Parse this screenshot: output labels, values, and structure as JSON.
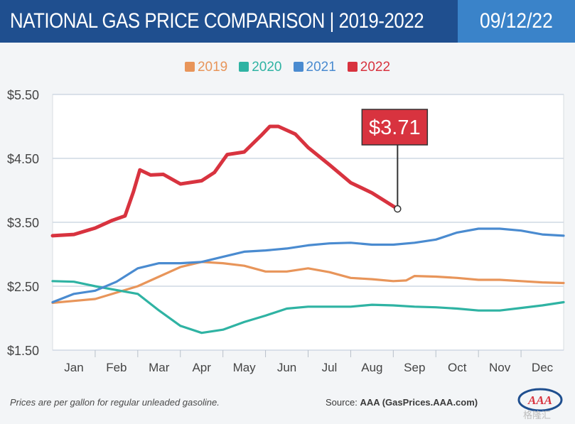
{
  "header": {
    "title": "NATIONAL GAS PRICE COMPARISON | 2019-2022",
    "date": "09/12/22"
  },
  "footer": {
    "note": "Prices are per gallon for regular unleaded gasoline.",
    "source_label": "Source:",
    "source_value": "AAA (GasPrices.AAA.com)",
    "logo_text": "AAA",
    "watermark": "格隆汇"
  },
  "chart_data": {
    "type": "line",
    "title": "",
    "xlabel": "",
    "ylabel": "",
    "months": [
      "Jan",
      "Feb",
      "Mar",
      "Apr",
      "May",
      "Jun",
      "Jul",
      "Aug",
      "Sep",
      "Oct",
      "Nov",
      "Dec"
    ],
    "yticks": [
      "$5.50",
      "$4.50",
      "$3.50",
      "$2.50",
      "$1.50"
    ],
    "ylim": [
      1.5,
      5.5
    ],
    "xlim": [
      0,
      12
    ],
    "grid": "horizontal",
    "legend_position": "top-center",
    "callout": {
      "label": "$3.71",
      "series": "2022",
      "x": 8.1,
      "y": 3.71
    },
    "series": [
      {
        "name": "2019",
        "color": "#e8955a",
        "points": [
          [
            0,
            2.24
          ],
          [
            0.5,
            2.27
          ],
          [
            1,
            2.3
          ],
          [
            1.5,
            2.4
          ],
          [
            2,
            2.5
          ],
          [
            2.5,
            2.65
          ],
          [
            3,
            2.8
          ],
          [
            3.5,
            2.88
          ],
          [
            4,
            2.86
          ],
          [
            4.5,
            2.82
          ],
          [
            5,
            2.73
          ],
          [
            5.5,
            2.73
          ],
          [
            6,
            2.78
          ],
          [
            6.5,
            2.72
          ],
          [
            7,
            2.63
          ],
          [
            7.5,
            2.61
          ],
          [
            8,
            2.58
          ],
          [
            8.3,
            2.59
          ],
          [
            8.5,
            2.66
          ],
          [
            9,
            2.65
          ],
          [
            9.5,
            2.63
          ],
          [
            10,
            2.6
          ],
          [
            10.5,
            2.6
          ],
          [
            11,
            2.58
          ],
          [
            11.5,
            2.56
          ],
          [
            12,
            2.55
          ]
        ]
      },
      {
        "name": "2020",
        "color": "#2fb3a3",
        "points": [
          [
            0,
            2.58
          ],
          [
            0.5,
            2.57
          ],
          [
            1,
            2.5
          ],
          [
            1.5,
            2.44
          ],
          [
            2,
            2.38
          ],
          [
            2.5,
            2.12
          ],
          [
            3,
            1.88
          ],
          [
            3.5,
            1.77
          ],
          [
            4,
            1.82
          ],
          [
            4.5,
            1.94
          ],
          [
            5,
            2.04
          ],
          [
            5.5,
            2.15
          ],
          [
            6,
            2.18
          ],
          [
            6.5,
            2.18
          ],
          [
            7,
            2.18
          ],
          [
            7.5,
            2.21
          ],
          [
            8,
            2.2
          ],
          [
            8.5,
            2.18
          ],
          [
            9,
            2.17
          ],
          [
            9.5,
            2.15
          ],
          [
            10,
            2.12
          ],
          [
            10.5,
            2.12
          ],
          [
            11,
            2.16
          ],
          [
            11.5,
            2.2
          ],
          [
            12,
            2.25
          ]
        ]
      },
      {
        "name": "2021",
        "color": "#4a8bd0",
        "points": [
          [
            0,
            2.25
          ],
          [
            0.5,
            2.38
          ],
          [
            1,
            2.43
          ],
          [
            1.5,
            2.57
          ],
          [
            2,
            2.78
          ],
          [
            2.5,
            2.86
          ],
          [
            3,
            2.86
          ],
          [
            3.5,
            2.88
          ],
          [
            4,
            2.96
          ],
          [
            4.5,
            3.04
          ],
          [
            5,
            3.06
          ],
          [
            5.5,
            3.09
          ],
          [
            6,
            3.14
          ],
          [
            6.5,
            3.17
          ],
          [
            7,
            3.18
          ],
          [
            7.5,
            3.15
          ],
          [
            8,
            3.15
          ],
          [
            8.5,
            3.18
          ],
          [
            9,
            3.23
          ],
          [
            9.5,
            3.34
          ],
          [
            10,
            3.4
          ],
          [
            10.5,
            3.4
          ],
          [
            11,
            3.37
          ],
          [
            11.5,
            3.31
          ],
          [
            12,
            3.29
          ]
        ]
      },
      {
        "name": "2022",
        "color": "#d8333f",
        "points": [
          [
            0,
            3.29
          ],
          [
            0.5,
            3.31
          ],
          [
            1,
            3.41
          ],
          [
            1.4,
            3.53
          ],
          [
            1.7,
            3.6
          ],
          [
            1.9,
            3.98
          ],
          [
            2.05,
            4.32
          ],
          [
            2.3,
            4.24
          ],
          [
            2.6,
            4.25
          ],
          [
            3,
            4.1
          ],
          [
            3.5,
            4.15
          ],
          [
            3.8,
            4.28
          ],
          [
            4.1,
            4.56
          ],
          [
            4.5,
            4.6
          ],
          [
            4.9,
            4.86
          ],
          [
            5.1,
            5.0
          ],
          [
            5.3,
            5.0
          ],
          [
            5.7,
            4.88
          ],
          [
            6,
            4.67
          ],
          [
            6.5,
            4.4
          ],
          [
            7,
            4.12
          ],
          [
            7.5,
            3.96
          ],
          [
            8.1,
            3.71
          ]
        ]
      }
    ]
  }
}
